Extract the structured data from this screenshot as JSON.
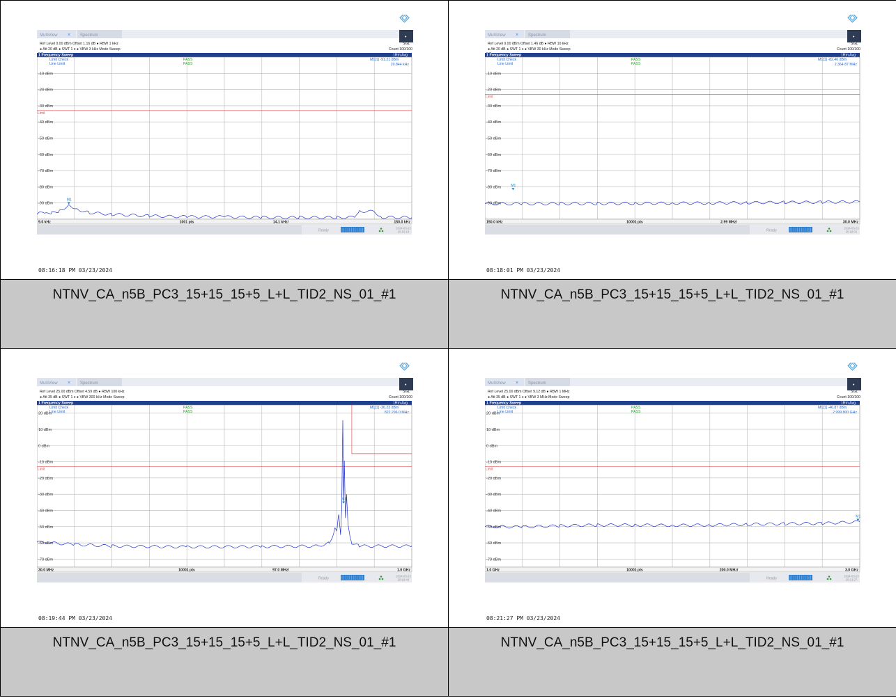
{
  "panels": [
    {
      "ui": {
        "tab1": "MultiView",
        "tab2": "Spectrum",
        "sgl": "SGL",
        "count": "Count 100/100",
        "dc": "DC",
        "sweep_title": "1 Frequency Sweep",
        "trace_mode": "1Rm Avg",
        "limit_check": "Limit Check",
        "line_limit": "Line Limit",
        "pass1": "PASS",
        "pass2": "PASS",
        "ready": "Ready",
        "limit_label": "Limit",
        "marker_label": "M1"
      },
      "settings": {
        "ref": "Ref Level 0.00 dBm",
        "offset": "Offset 1.16 dB",
        "rbw": "RBW 1 kHz",
        "att": "Att 20 dB",
        "swt": "SWT 1 s",
        "vbw": "VBW 3 kHz",
        "mode": "Mode Sweep"
      },
      "marker": {
        "name": "M1[1]",
        "value": "-91.21 dBm",
        "freq": "20.844 kHz"
      },
      "footer": {
        "start": "9.0 kHz",
        "pts": "1001 pts",
        "div": "14.1 kHz/",
        "stop": "150.0 kHz",
        "date": "2024-03-23",
        "time": "20:16:18"
      },
      "timestamp": "08:16:18 PM  03/23/2024",
      "chart_data": {
        "type": "line",
        "y_ticks": [
          "-10 dBm",
          "-20 dBm",
          "-30 dBm",
          "-40 dBm",
          "-50 dBm",
          "-60 dBm",
          "-70 dBm",
          "-80 dBm",
          "-90 dBm"
        ],
        "y_top": 0,
        "y_bottom": -100,
        "limit": -33,
        "marker_pos": 0.085,
        "marker_y": -91.2,
        "trace": [
          [
            0,
            -97
          ],
          [
            0.01,
            -96
          ],
          [
            0.02,
            -97
          ],
          [
            0.04,
            -96
          ],
          [
            0.06,
            -95
          ],
          [
            0.085,
            -91.2
          ],
          [
            0.11,
            -94
          ],
          [
            0.14,
            -96
          ],
          [
            0.2,
            -97
          ],
          [
            0.3,
            -98
          ],
          [
            0.4,
            -98.5
          ],
          [
            0.5,
            -98.5
          ],
          [
            0.6,
            -99
          ],
          [
            0.7,
            -99
          ],
          [
            0.8,
            -99
          ],
          [
            0.85,
            -98.7
          ],
          [
            0.86,
            -95
          ],
          [
            0.9,
            -95.3
          ],
          [
            0.92,
            -98.8
          ],
          [
            1,
            -99
          ]
        ]
      }
    },
    {
      "ui": {
        "tab1": "MultiView",
        "tab2": "Spectrum",
        "sgl": "SGL",
        "count": "Count 100/100",
        "dc": "DC",
        "sweep_title": "1 Frequency Sweep",
        "trace_mode": "1Rm Avg",
        "limit_check": "Limit Check",
        "line_limit": "Line Limit",
        "pass1": "PASS",
        "pass2": "PASS",
        "ready": "Ready",
        "limit_label": "Limit",
        "marker_label": "M1"
      },
      "settings": {
        "ref": "Ref Level 0.00 dBm",
        "offset": "Offset 1.46 dB",
        "rbw": "RBW 10 kHz",
        "att": "Att 20 dB",
        "swt": "SWT 1 s",
        "vbw": "VBW 30 kHz",
        "mode": "Mode Sweep"
      },
      "marker": {
        "name": "M1[1]",
        "value": "-82.46 dBm",
        "freq": "2.364 87 MHz"
      },
      "footer": {
        "start": "150.0 kHz",
        "pts": "10001 pts",
        "div": "2.99 MHz/",
        "stop": "30.0 MHz",
        "date": "2024-03-23",
        "time": "20:18:01"
      },
      "timestamp": "08:18:01 PM  03/23/2024",
      "chart_data": {
        "type": "line",
        "y_ticks": [
          "-10 dBm",
          "-20 dBm",
          "-30 dBm",
          "-40 dBm",
          "-50 dBm",
          "-60 dBm",
          "-70 dBm",
          "-80 dBm",
          "-90 dBm"
        ],
        "y_top": 0,
        "y_bottom": -100,
        "limit": -23,
        "marker_pos": 0.075,
        "marker_y": -82.5,
        "trace": [
          [
            0,
            -90.5
          ],
          [
            0.1,
            -90.5
          ],
          [
            0.2,
            -90.4
          ],
          [
            0.3,
            -90.3
          ],
          [
            0.4,
            -90.2
          ],
          [
            0.5,
            -90.1
          ],
          [
            0.6,
            -90
          ],
          [
            0.7,
            -89.8
          ],
          [
            0.8,
            -89.6
          ],
          [
            0.9,
            -89.5
          ],
          [
            1,
            -89.3
          ]
        ]
      }
    },
    {
      "ui": {
        "tab1": "MultiView",
        "tab2": "Spectrum",
        "sgl": "SGL",
        "count": "Count 100/100",
        "dc": "",
        "sweep_title": "1 Frequency Sweep",
        "trace_mode": "1Rm Avg",
        "limit_check": "Limit Check",
        "line_limit": "Line Limit",
        "pass1": "PASS",
        "pass2": "PASS",
        "ready": "Ready",
        "limit_label": "Limit",
        "marker_label": "M1"
      },
      "settings": {
        "ref": "Ref Level 25.00 dBm",
        "offset": "Offset 4.59 dB",
        "rbw": "RBW 100 kHz",
        "att": "Att 35 dB",
        "swt": "SWT 1 s",
        "vbw": "VBW 300 kHz",
        "mode": "Mode Sweep"
      },
      "marker": {
        "name": "M1[1]",
        "value": "-36.23 dBm",
        "freq": "822.296 0 MHz"
      },
      "footer": {
        "start": "30.0 MHz",
        "pts": "10001 pts",
        "div": "97.0 MHz/",
        "stop": "1.0 GHz",
        "date": "2024-03-23",
        "time": "20:19:44"
      },
      "timestamp": "08:19:44 PM  03/23/2024",
      "chart_data": {
        "type": "line",
        "y_ticks": [
          "20 dBm",
          "10 dBm",
          "0 dBm",
          "-10 dBm",
          "-20 dBm",
          "-30 dBm",
          "-40 dBm",
          "-50 dBm",
          "-60 dBm",
          "-70 dBm"
        ],
        "y_top": 25,
        "y_bottom": -75,
        "limit": -13,
        "limit_upper": {
          "from": 0.84,
          "value": -5
        },
        "marker_pos": 0.818,
        "marker_y": -36.2,
        "trace": [
          [
            0,
            -59.5
          ],
          [
            0.1,
            -61
          ],
          [
            0.2,
            -62
          ],
          [
            0.4,
            -62.5
          ],
          [
            0.6,
            -62.3
          ],
          [
            0.75,
            -62
          ],
          [
            0.78,
            -60
          ],
          [
            0.79,
            -55
          ],
          [
            0.795,
            -50
          ],
          [
            0.8,
            -52
          ],
          [
            0.805,
            -42
          ],
          [
            0.81,
            -55
          ],
          [
            0.813,
            -40
          ],
          [
            0.816,
            15
          ],
          [
            0.818,
            -36
          ],
          [
            0.82,
            -10
          ],
          [
            0.823,
            -45
          ],
          [
            0.826,
            -30
          ],
          [
            0.83,
            -48
          ],
          [
            0.835,
            -55
          ],
          [
            0.84,
            -60
          ],
          [
            0.86,
            -62
          ],
          [
            1,
            -62
          ]
        ]
      }
    },
    {
      "ui": {
        "tab1": "MultiView",
        "tab2": "Spectrum",
        "sgl": "SGL",
        "count": "Count 100/100",
        "dc": "",
        "sweep_title": "1 Frequency Sweep",
        "trace_mode": "1Rm Avg",
        "limit_check": "Limit Check",
        "line_limit": "Line Limit",
        "pass1": "PASS",
        "pass2": "PASS",
        "ready": "Ready",
        "limit_label": "Limit",
        "marker_label": "M1"
      },
      "settings": {
        "ref": "Ref Level 25.00 dBm",
        "offset": "Offset 9.12 dB",
        "rbw": "RBW 1 MHz",
        "att": "Att 35 dB",
        "swt": "SWT 1 s",
        "vbw": "VBW 3 MHz",
        "mode": "Mode Sweep"
      },
      "marker": {
        "name": "M1[1]",
        "value": "-46.87 dBm",
        "freq": "2.999 800 GHz"
      },
      "footer": {
        "start": "1.0 GHz",
        "pts": "10001 pts",
        "div": "200.0 MHz/",
        "stop": "3.0 GHz",
        "date": "2024-03-23",
        "time": "20:21:27"
      },
      "timestamp": "08:21:27 PM  03/23/2024",
      "chart_data": {
        "type": "line",
        "y_ticks": [
          "20 dBm",
          "10 dBm",
          "0 dBm",
          "-10 dBm",
          "-20 dBm",
          "-30 dBm",
          "-40 dBm",
          "-50 dBm",
          "-60 dBm",
          "-70 dBm"
        ],
        "y_top": 25,
        "y_bottom": -75,
        "limit": -13,
        "marker_pos": 0.995,
        "marker_y": -46.9,
        "trace": [
          [
            0,
            -50
          ],
          [
            0.1,
            -50.2
          ],
          [
            0.2,
            -49.5
          ],
          [
            0.3,
            -49
          ],
          [
            0.4,
            -49
          ],
          [
            0.5,
            -49.2
          ],
          [
            0.6,
            -49
          ],
          [
            0.7,
            -48.6
          ],
          [
            0.8,
            -48.2
          ],
          [
            0.9,
            -48
          ],
          [
            1,
            -47
          ]
        ]
      }
    }
  ],
  "captions": [
    "NTNV_CA_n5B_PC3_15+15_15+5_L+L_TID2_NS_01_#1",
    "NTNV_CA_n5B_PC3_15+15_15+5_L+L_TID2_NS_01_#1",
    "NTNV_CA_n5B_PC3_15+15_15+5_L+L_TID2_NS_01_#1",
    "NTNV_CA_n5B_PC3_15+15_15+5_L+L_TID2_NS_01_#1"
  ],
  "colors": {
    "header_blue": "#1f3f8f",
    "trace": "#2233cc",
    "limit": "#e05050",
    "pass": "#22aa22",
    "marker": "#1a7fc1",
    "caption_bg": "#c8c8c8"
  }
}
